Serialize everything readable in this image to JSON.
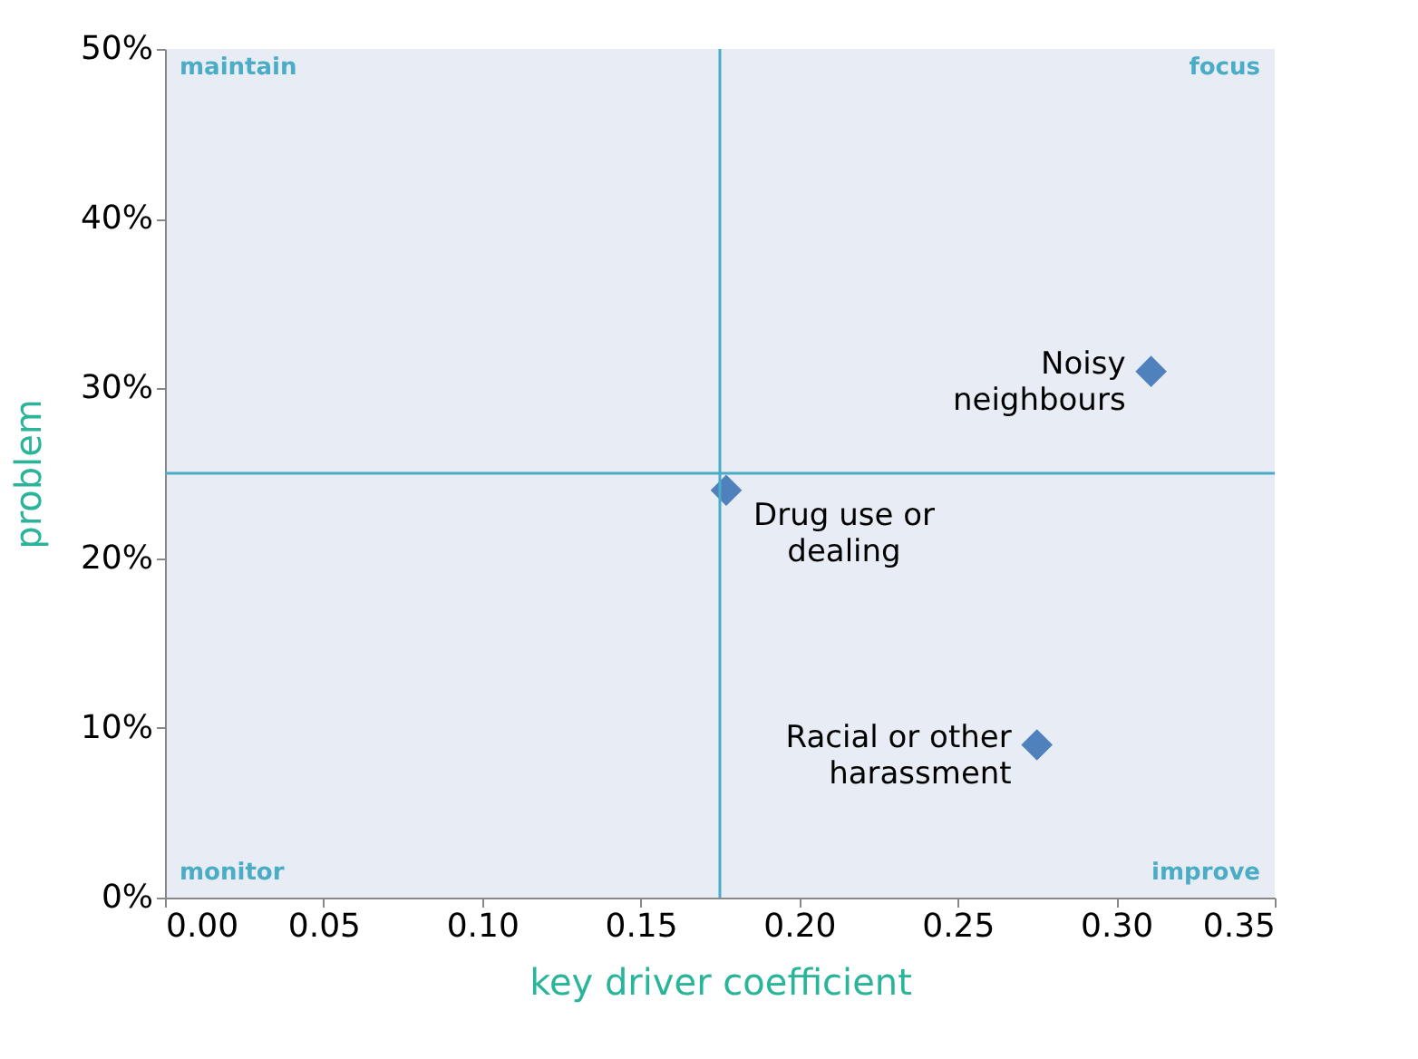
{
  "chart_data": {
    "type": "scatter",
    "xlabel": "key driver coefficient",
    "ylabel": "problem",
    "x": [
      0.311,
      0.177,
      0.275
    ],
    "series": [
      {
        "color": "#4f81bd",
        "values": [
          31,
          24,
          9
        ]
      }
    ],
    "marker": "diamond",
    "grid": false,
    "xlim": [
      0,
      0.35
    ],
    "xticks": [
      {
        "value": 0,
        "label": "0.00"
      },
      0.05,
      {
        "value": 0.1,
        "label": "0.10"
      },
      0.15,
      {
        "value": 0.2,
        "label": "0.20"
      },
      0.25,
      {
        "value": 0.3,
        "label": "0.30"
      },
      0.35
    ],
    "ylim": [
      0,
      50
    ],
    "yticks": [
      {
        "value": 0,
        "label": "0%"
      },
      {
        "value": 10,
        "label": "10%"
      },
      {
        "value": 20,
        "label": "20%"
      },
      {
        "value": 30,
        "label": "30%"
      },
      {
        "value": 40,
        "label": "40%"
      },
      {
        "value": 50,
        "label": "50%"
      }
    ],
    "ref_lines": [
      {
        "axis": "x",
        "value": 0.175,
        "color": "#4bacc6"
      },
      {
        "axis": "y",
        "value": 25,
        "color": "#4bacc6"
      }
    ],
    "annotations": [
      "maintain",
      "focus",
      "monitor",
      "improve",
      {
        "text": "Noisy\nneighbours",
        "x": 0.311,
        "y": 31
      },
      {
        "text": "Drug use or\ndealing",
        "x": 0.177,
        "y": 24
      },
      {
        "text": "Racial or other\nharassment",
        "x": 0.275,
        "y": 9
      }
    ]
  }
}
